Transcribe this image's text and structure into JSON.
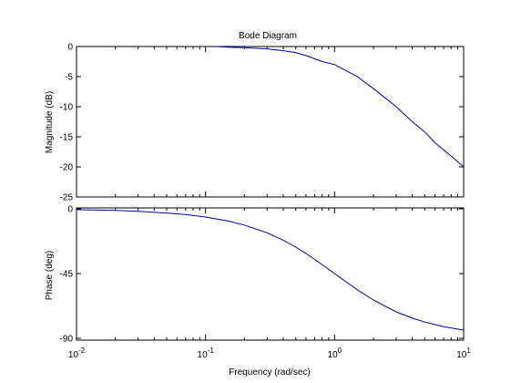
{
  "chart_data": [
    {
      "type": "line",
      "title": "Bode Diagram",
      "xlabel": "",
      "ylabel": "Magnitude (dB)",
      "xscale": "log",
      "xlim": [
        0.01,
        10
      ],
      "ylim": [
        -25,
        0
      ],
      "yticks": [
        0,
        -5,
        -10,
        -15,
        -20,
        -25
      ],
      "ytick_labels": [
        "0",
        "-5",
        "-10",
        "-15",
        "-20",
        "-25"
      ],
      "grid": false,
      "series": [
        {
          "color": "#0000b0",
          "x": [
            0.12,
            0.15,
            0.2,
            0.25,
            0.3,
            0.4,
            0.5,
            0.6,
            0.8,
            1.0,
            1.5,
            2.0,
            3.0,
            4.0,
            5.0,
            6.0,
            8.0,
            10.0
          ],
          "y": [
            0.0,
            -0.1,
            -0.2,
            -0.3,
            -0.4,
            -0.7,
            -1.0,
            -1.5,
            -2.5,
            -3.0,
            -5.0,
            -7.0,
            -10.0,
            -12.5,
            -14.2,
            -16.0,
            -18.2,
            -20.0
          ]
        }
      ]
    },
    {
      "type": "line",
      "title": "",
      "xlabel": "Frequency  (rad/sec)",
      "ylabel": "Phase (deg)",
      "xscale": "log",
      "xlim": [
        0.01,
        10
      ],
      "ylim": [
        -91,
        0
      ],
      "yticks": [
        0,
        -45,
        -90
      ],
      "ytick_labels": [
        "0",
        "-45",
        "-90"
      ],
      "xticks": [
        0.01,
        0.1,
        1,
        10
      ],
      "xtick_labels": [
        {
          "base": "10",
          "exp": "-2"
        },
        {
          "base": "10",
          "exp": "-1"
        },
        {
          "base": "10",
          "exp": "0"
        },
        {
          "base": "10",
          "exp": "1"
        }
      ],
      "grid": false,
      "series": [
        {
          "color": "#0000b0",
          "x": [
            0.01,
            0.015,
            0.02,
            0.03,
            0.05,
            0.07,
            0.1,
            0.15,
            0.2,
            0.3,
            0.4,
            0.5,
            0.6,
            0.8,
            1.0,
            1.5,
            2.0,
            3.0,
            4.0,
            5.0,
            7.0,
            10.0
          ],
          "y": [
            -0.6,
            -0.9,
            -1.1,
            -1.7,
            -2.9,
            -4.0,
            -5.7,
            -8.5,
            -11.3,
            -16.7,
            -21.8,
            -26.6,
            -31.0,
            -38.7,
            -45.0,
            -56.3,
            -63.4,
            -71.6,
            -76.0,
            -78.7,
            -81.9,
            -84.3
          ]
        }
      ]
    }
  ]
}
